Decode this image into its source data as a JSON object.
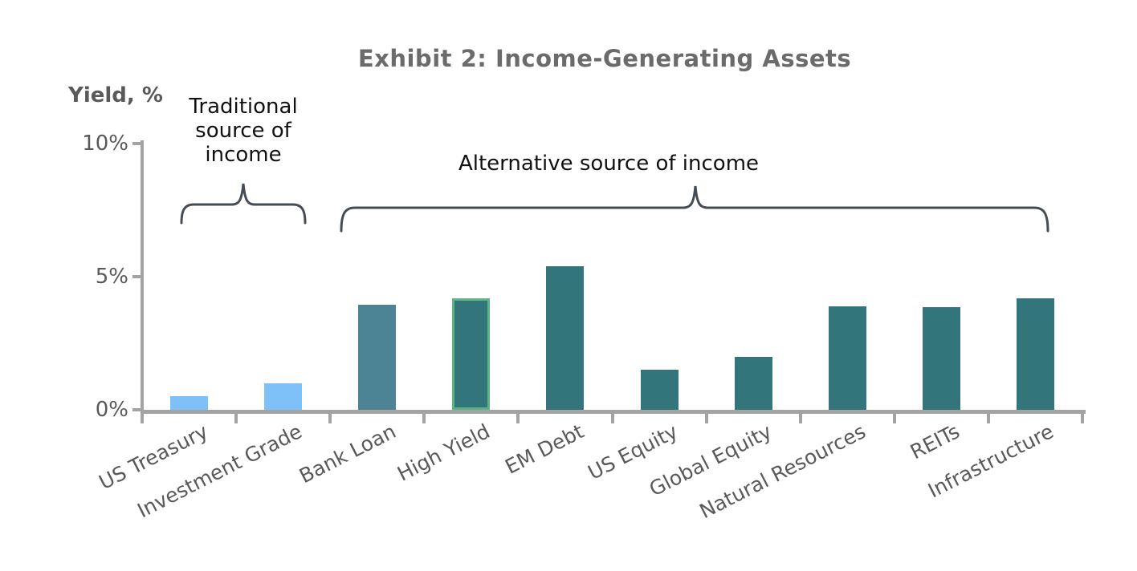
{
  "title": "Exhibit 2: Income-Generating Assets",
  "annotations": {
    "traditional_label": "Traditional source of income",
    "alternative_label": "Alternative source of income"
  },
  "chart_data": {
    "type": "bar",
    "title": "Exhibit 2: Income-Generating Assets",
    "ylabel": "Yield, %",
    "xlabel": "",
    "ylim": [
      0,
      10
    ],
    "grid": false,
    "legend": "none",
    "yticks": [
      {
        "value": 0,
        "label": "0%"
      },
      {
        "value": 5,
        "label": "5%"
      },
      {
        "value": 10,
        "label": "10%"
      }
    ],
    "categories": [
      "US Treasury",
      "Investment Grade",
      "Bank Loan",
      "High Yield",
      "EM Debt",
      "US Equity",
      "Global Equity",
      "Natural Resources",
      "REITs",
      "Infrastructure"
    ],
    "values": [
      0.5,
      1.0,
      3.95,
      4.2,
      5.4,
      1.5,
      2.0,
      3.9,
      3.85,
      4.2
    ],
    "bar_colors": [
      "#7DC1F8",
      "#7DC1F8",
      "#4C8496",
      "#32757B",
      "#32757B",
      "#32757B",
      "#32757B",
      "#32757B",
      "#32757B",
      "#32757B"
    ],
    "bar_border_colors": [
      null,
      null,
      null,
      "#5DB483",
      null,
      null,
      null,
      null,
      null,
      null
    ],
    "groups": [
      {
        "label": "Traditional source of income",
        "from": 0,
        "to": 1
      },
      {
        "label": "Alternative source of income",
        "from": 2,
        "to": 9
      }
    ]
  },
  "colors": {
    "light_blue": "#7DC1F8",
    "steel_blue": "#4C8496",
    "teal": "#32757B",
    "highlight_green_border": "#5DB483",
    "axis_gray": "#A3A3A3",
    "tick_text_gray": "#595959",
    "title_gray": "#6B6B6B",
    "annotation_text": "#111111",
    "brace": "#454C54"
  }
}
